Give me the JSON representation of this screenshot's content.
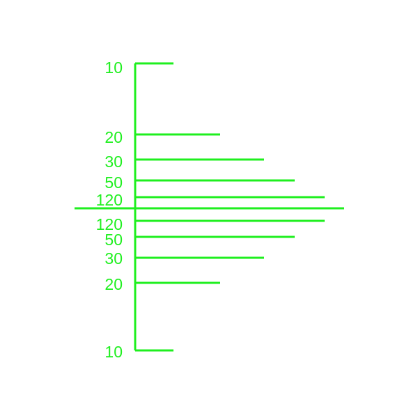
{
  "colors": {
    "line": "#1fef1f",
    "background": "#ffffff"
  },
  "scale": {
    "upper_ticks": [
      {
        "label": "10"
      },
      {
        "label": "20"
      },
      {
        "label": "30"
      },
      {
        "label": "50"
      },
      {
        "label": "120"
      }
    ],
    "lower_ticks": [
      {
        "label": "120"
      },
      {
        "label": "50"
      },
      {
        "label": "30"
      },
      {
        "label": "20"
      },
      {
        "label": "10"
      }
    ]
  }
}
